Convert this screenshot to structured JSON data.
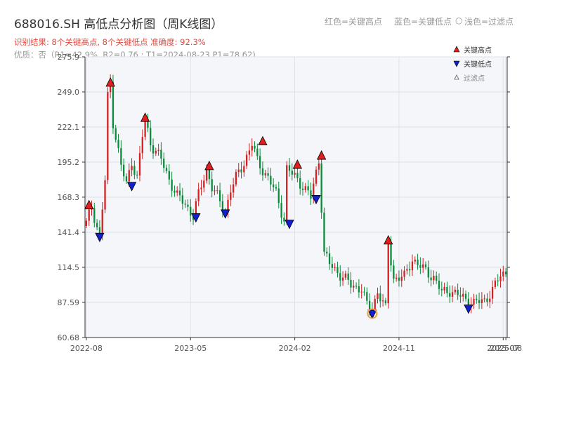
{
  "title": "688016.SH 高低点分析图（周K线图）",
  "result_line": "识别结果: 8个关键高点, 8个关键低点  准确度: 92.3%",
  "quality_line": "优质：否（R1=42.9%, R2=0.76 ; T1=2024-08-23 P1=78.62)",
  "top_legend": {
    "red": "红色=关键高点",
    "blue": "蓝色=关键低点",
    "circle": "○",
    "gray": "浅色=过滤点"
  },
  "legend": {
    "high": "关键高点",
    "low": "关键低点",
    "filtered": "过滤点"
  },
  "colors": {
    "up": "#d42020",
    "down": "#0a8a3a",
    "high_marker": "#e02020",
    "low_marker": "#1020d0",
    "highlight": "#f0a040",
    "plot_bg": "#f4f6f9",
    "grid": "#dde2ea"
  },
  "chart_data": {
    "type": "candlestick",
    "x_ticks": [
      "2022-08",
      "2023-05",
      "2024-02",
      "2024-11",
      "2025-07",
      "2025-08"
    ],
    "x_tick_weeks": [
      0,
      39,
      78,
      117,
      156,
      157
    ],
    "y_ticks": [
      "60.68",
      "87.59",
      "114.5",
      "141.4",
      "168.3",
      "195.2",
      "222.1",
      "249.0",
      "275.9"
    ],
    "ylim": [
      60.68,
      275.9
    ],
    "week_count": 158,
    "anchors": [
      [
        0,
        148
      ],
      [
        2,
        161
      ],
      [
        5,
        138
      ],
      [
        7,
        181
      ],
      [
        8,
        245
      ],
      [
        9,
        256
      ],
      [
        10,
        226
      ],
      [
        13,
        192
      ],
      [
        15,
        178
      ],
      [
        17,
        196
      ],
      [
        19,
        183
      ],
      [
        21,
        215
      ],
      [
        22,
        228
      ],
      [
        24,
        210
      ],
      [
        28,
        197
      ],
      [
        31,
        182
      ],
      [
        34,
        169
      ],
      [
        37,
        163
      ],
      [
        40,
        154
      ],
      [
        42,
        170
      ],
      [
        45,
        190
      ],
      [
        47,
        176
      ],
      [
        52,
        157
      ],
      [
        54,
        174
      ],
      [
        56,
        183
      ],
      [
        59,
        195
      ],
      [
        62,
        209
      ],
      [
        64,
        196
      ],
      [
        68,
        183
      ],
      [
        71,
        171
      ],
      [
        74,
        151
      ],
      [
        75,
        190
      ],
      [
        78,
        184
      ],
      [
        81,
        177
      ],
      [
        84,
        168
      ],
      [
        87,
        197
      ],
      [
        89,
        125
      ],
      [
        91,
        117
      ],
      [
        95,
        109
      ],
      [
        99,
        101
      ],
      [
        103,
        98
      ],
      [
        105,
        85
      ],
      [
        107,
        83
      ],
      [
        109,
        96
      ],
      [
        112,
        82
      ],
      [
        113,
        133
      ],
      [
        115,
        106
      ],
      [
        119,
        107
      ],
      [
        122,
        121
      ],
      [
        126,
        113
      ],
      [
        130,
        107
      ],
      [
        133,
        95
      ],
      [
        136,
        97
      ],
      [
        140,
        92
      ],
      [
        142,
        90
      ],
      [
        145,
        87
      ],
      [
        149,
        89
      ],
      [
        152,
        97
      ],
      [
        155,
        108
      ],
      [
        157,
        111
      ]
    ],
    "high_points": [
      {
        "week": 1,
        "price": 162
      },
      {
        "week": 9,
        "price": 256
      },
      {
        "week": 22,
        "price": 229
      },
      {
        "week": 46,
        "price": 192
      },
      {
        "week": 66,
        "price": 211
      },
      {
        "week": 79,
        "price": 193
      },
      {
        "week": 88,
        "price": 200
      },
      {
        "week": 113,
        "price": 135
      }
    ],
    "low_points": [
      {
        "week": 5,
        "price": 138
      },
      {
        "week": 17,
        "price": 177
      },
      {
        "week": 41,
        "price": 153
      },
      {
        "week": 52,
        "price": 156
      },
      {
        "week": 76,
        "price": 148
      },
      {
        "week": 86,
        "price": 167
      },
      {
        "week": 107,
        "price": 79
      },
      {
        "week": 143,
        "price": 83
      }
    ],
    "highlight_week": 107,
    "highlight_price": 79
  }
}
